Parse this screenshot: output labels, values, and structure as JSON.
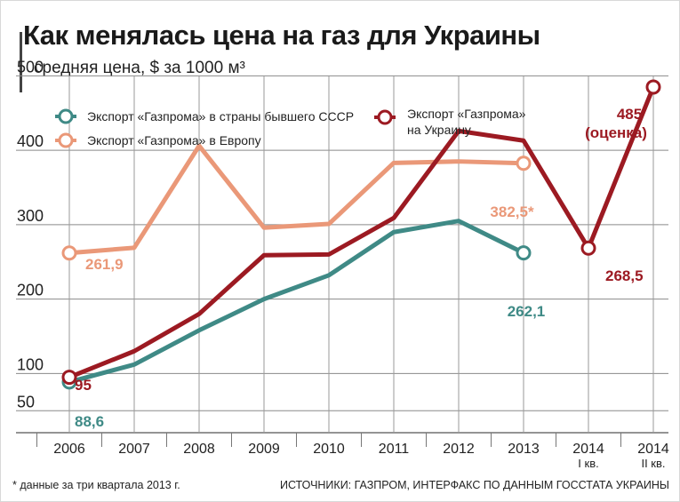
{
  "title": "Как менялась цена на газ для Украины",
  "subtitle": "средняя цена, $ за 1000 м³",
  "footnote": "* данные за три квартала 2013 г.",
  "source": "ИСТОЧНИКИ:  ГАЗПРОМ, ИНТЕРФАКС ПО ДАННЫМ ГОССТАТА УКРАИНЫ",
  "chart_data": {
    "type": "line",
    "categories": [
      {
        "label": "2006",
        "sub": ""
      },
      {
        "label": "2007",
        "sub": ""
      },
      {
        "label": "2008",
        "sub": ""
      },
      {
        "label": "2009",
        "sub": ""
      },
      {
        "label": "2010",
        "sub": ""
      },
      {
        "label": "2011",
        "sub": ""
      },
      {
        "label": "2012",
        "sub": ""
      },
      {
        "label": "2013",
        "sub": ""
      },
      {
        "label": "2014",
        "sub": "I кв."
      },
      {
        "label": "2014",
        "sub": "II кв."
      }
    ],
    "y_ticks": [
      50,
      100,
      200,
      300,
      400,
      500
    ],
    "ylim": [
      30,
      520
    ],
    "grid": true,
    "series": [
      {
        "name": "Экспорт «Газпрома» в страны бывшего СССР",
        "color": "#3f8a86",
        "values": [
          88.6,
          112,
          158,
          200,
          232,
          290,
          305,
          262.1,
          null,
          null
        ]
      },
      {
        "name": "Экспорт «Газпрома» в Европу",
        "color": "#ea9878",
        "values": [
          261.9,
          269,
          406,
          296,
          301,
          383,
          385,
          382.5,
          null,
          null
        ]
      },
      {
        "name": "Экспорт «Газпрома» на Украину",
        "color": "#9c1a22",
        "values": [
          95,
          130,
          180,
          259,
          260,
          309,
          426,
          413,
          268.5,
          485
        ]
      }
    ],
    "annotations": [
      {
        "text": "95",
        "color": "#9c1a22"
      },
      {
        "text": "88,6",
        "color": "#3f8a86"
      },
      {
        "text": "261,9",
        "color": "#ea9878"
      },
      {
        "text": "262,1",
        "color": "#3f8a86"
      },
      {
        "text": "382,5*",
        "color": "#ea9878"
      },
      {
        "text": "268,5",
        "color": "#9c1a22"
      },
      {
        "text": "485",
        "color": "#9c1a22"
      },
      {
        "text": "(оценка)",
        "color": "#9c1a22"
      }
    ]
  }
}
